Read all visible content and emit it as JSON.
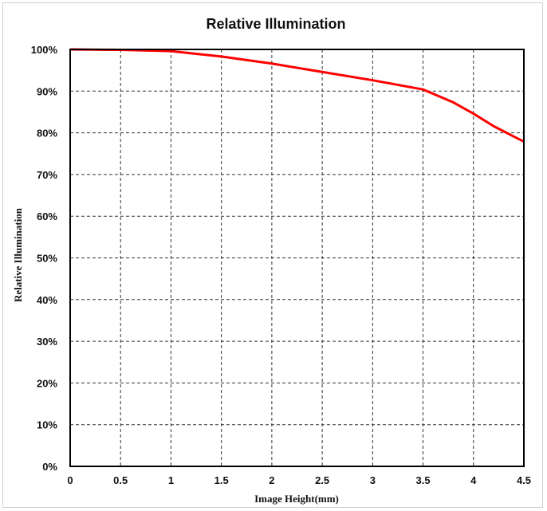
{
  "chart_data": {
    "type": "line",
    "title": "Relative Illumination",
    "xlabel": "Image Height(mm)",
    "ylabel": "Relative Illumination",
    "xlim": [
      0,
      4.5
    ],
    "ylim": [
      0,
      100
    ],
    "x_ticks": [
      "0",
      "0.5",
      "1",
      "1.5",
      "2",
      "2.5",
      "3",
      "3.5",
      "4",
      "4.5"
    ],
    "y_ticks": [
      "0%",
      "10%",
      "20%",
      "30%",
      "40%",
      "50%",
      "60%",
      "70%",
      "80%",
      "90%",
      "100%"
    ],
    "grid": true,
    "series": [
      {
        "color": "#ff0000",
        "x": [
          0,
          0.5,
          1,
          1.5,
          2,
          2.5,
          3,
          3.5,
          3.8,
          4.0,
          4.2,
          4.4,
          4.5
        ],
        "y": [
          100,
          99.9,
          99.6,
          98.3,
          96.6,
          94.6,
          92.6,
          90.4,
          87.3,
          84.6,
          81.6,
          79.1,
          77.9
        ]
      }
    ]
  }
}
